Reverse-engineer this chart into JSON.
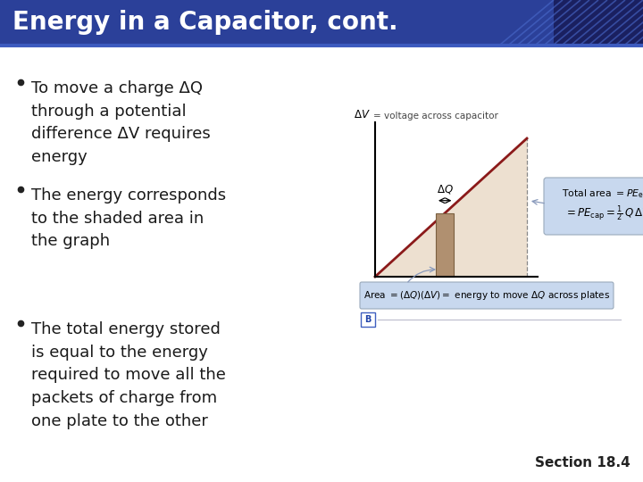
{
  "title": "Energy in a Capacitor, cont.",
  "title_bg": "#2B4099",
  "title_color": "#FFFFFF",
  "slide_bg": "#F0F0F0",
  "bullet_color": "#1a1a1a",
  "bullet_points": [
    "To move a charge ΔQ\nthrough a potential\ndifference ΔV requires\nenergy",
    "The energy corresponds\nto the shaded area in\nthe graph",
    "The total energy stored\nis equal to the energy\nrequired to move all the\npackets of charge from\none plate to the other"
  ],
  "section_label": "Section 18.4",
  "title_fontsize": 20,
  "bullet_fontsize": 13,
  "graph_bg_color": "#EDE0D0",
  "graph_line_color": "#8B1A1A",
  "graph_rect_color": "#B09070",
  "graph_rect_edge": "#7A6040",
  "callout_box_bg": "#C8D8EE",
  "callout_box_edge": "#9AAABB",
  "ann_box_bg": "#C8D8EE",
  "ann_box_edge": "#9AAABB",
  "b_box_edge": "#4060C0",
  "b_box_text": "#2244AA",
  "corner_dark": "#1A2870",
  "corner_mid": "#2B3D99",
  "section_fontsize": 11
}
